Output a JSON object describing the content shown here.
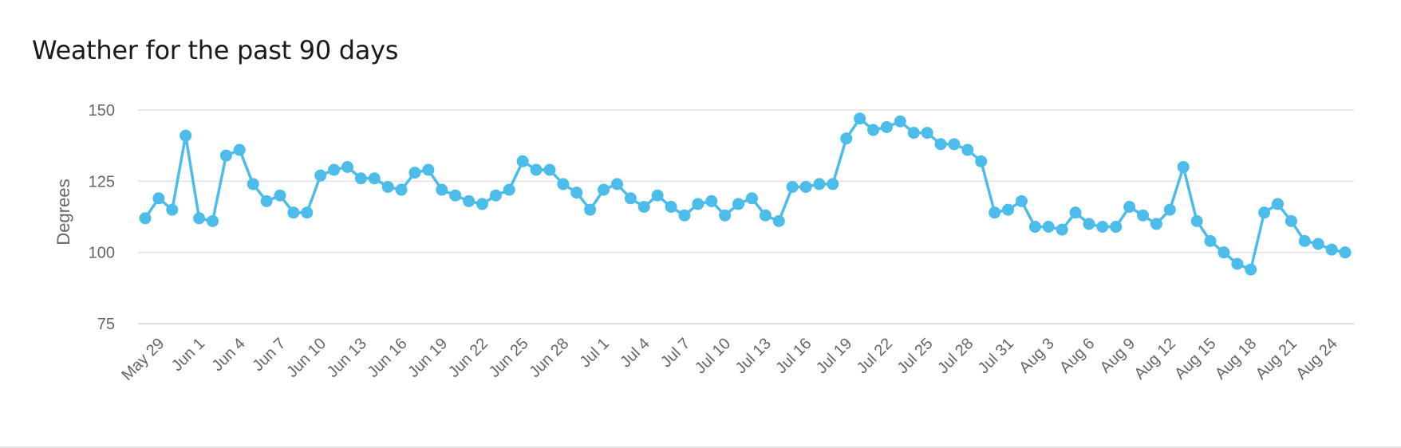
{
  "chart_data": {
    "type": "line",
    "title": "Weather for the past 90 days",
    "ylabel": "Degrees",
    "xlabel": "",
    "ylim": [
      75,
      150
    ],
    "yticks": [
      75,
      100,
      125,
      150
    ],
    "grid": true,
    "legend": "none",
    "line_color": "#4cbdea",
    "x_tick_labels": [
      "May 29",
      "Jun 1",
      "Jun 4",
      "Jun 7",
      "Jun 10",
      "Jun 13",
      "Jun 16",
      "Jun 19",
      "Jun 22",
      "Jun 25",
      "Jun 28",
      "Jul 1",
      "Jul 4",
      "Jul 7",
      "Jul 10",
      "Jul 13",
      "Jul 16",
      "Jul 19",
      "Jul 22",
      "Jul 25",
      "Jul 28",
      "Jul 31",
      "Aug 3",
      "Aug 6",
      "Aug 9",
      "Aug 12",
      "Aug 15",
      "Aug 18",
      "Aug 21",
      "Aug 24"
    ],
    "x": [
      "May 28",
      "May 29",
      "May 30",
      "May 31",
      "Jun 1",
      "Jun 2",
      "Jun 3",
      "Jun 4",
      "Jun 5",
      "Jun 6",
      "Jun 7",
      "Jun 8",
      "Jun 9",
      "Jun 10",
      "Jun 11",
      "Jun 12",
      "Jun 13",
      "Jun 14",
      "Jun 15",
      "Jun 16",
      "Jun 17",
      "Jun 18",
      "Jun 19",
      "Jun 20",
      "Jun 21",
      "Jun 22",
      "Jun 23",
      "Jun 24",
      "Jun 25",
      "Jun 26",
      "Jun 27",
      "Jun 28",
      "Jun 29",
      "Jun 30",
      "Jul 1",
      "Jul 2",
      "Jul 3",
      "Jul 4",
      "Jul 5",
      "Jul 6",
      "Jul 7",
      "Jul 8",
      "Jul 9",
      "Jul 10",
      "Jul 11",
      "Jul 12",
      "Jul 13",
      "Jul 14",
      "Jul 15",
      "Jul 16",
      "Jul 17",
      "Jul 18",
      "Jul 19",
      "Jul 20",
      "Jul 21",
      "Jul 22",
      "Jul 23",
      "Jul 24",
      "Jul 25",
      "Jul 26",
      "Jul 27",
      "Jul 28",
      "Jul 29",
      "Jul 30",
      "Jul 31",
      "Aug 1",
      "Aug 2",
      "Aug 3",
      "Aug 4",
      "Aug 5",
      "Aug 6",
      "Aug 7",
      "Aug 8",
      "Aug 9",
      "Aug 10",
      "Aug 11",
      "Aug 12",
      "Aug 13",
      "Aug 14",
      "Aug 15",
      "Aug 16",
      "Aug 17",
      "Aug 18",
      "Aug 19",
      "Aug 20",
      "Aug 21",
      "Aug 22",
      "Aug 23",
      "Aug 24",
      "Aug 25"
    ],
    "series": [
      {
        "values": [
          112,
          119,
          115,
          141,
          112,
          111,
          134,
          136,
          124,
          118,
          120,
          114,
          114,
          127,
          129,
          130,
          126,
          126,
          123,
          122,
          128,
          129,
          122,
          120,
          118,
          117,
          120,
          122,
          132,
          129,
          129,
          124,
          121,
          115,
          122,
          124,
          119,
          116,
          120,
          116,
          113,
          117,
          118,
          113,
          117,
          119,
          113,
          111,
          123,
          123,
          124,
          124,
          140,
          147,
          143,
          144,
          146,
          142,
          142,
          138,
          138,
          136,
          132,
          114,
          115,
          118,
          109,
          109,
          108,
          114,
          110,
          109,
          109,
          116,
          113,
          110,
          115,
          130,
          111,
          104,
          100,
          96,
          94,
          114,
          117,
          111,
          104,
          103,
          101,
          100
        ]
      }
    ]
  }
}
